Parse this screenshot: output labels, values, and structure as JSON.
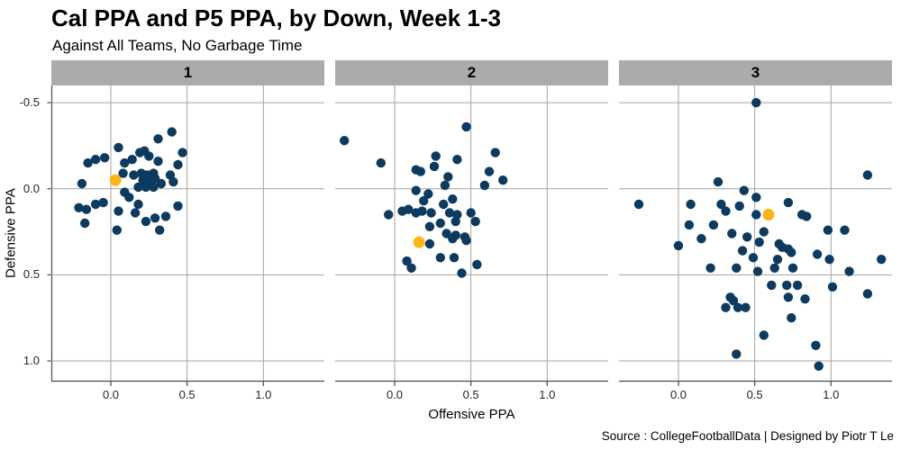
{
  "header": {
    "title": "Cal PPA and P5 PPA, by Down, Week 1-3",
    "subtitle": "Against All Teams, No Garbage Time"
  },
  "footer": {
    "source_note": "Source : CollegeFootballData | Designed by Piotr T Le"
  },
  "colors": {
    "p5_point": "#0d3a5f",
    "cal_point": "#fdb515",
    "strip_bg": "#ababab",
    "strip_text": "#000000",
    "gridline": "#a3a3a3",
    "axis_line": "#4a4a4a",
    "background": "#ffffff"
  },
  "chart_data": {
    "type": "scatter",
    "title": "Cal PPA and P5 PPA, by Down, Week 1-3",
    "subtitle": "Against All Teams, No Garbage Time",
    "xlabel": "Offensive PPA",
    "ylabel": "Defensive PPA",
    "facet_variable": "down",
    "grid": true,
    "legend": "none",
    "xlim": [
      -0.39,
      1.4
    ],
    "ylim": [
      -0.6,
      1.12
    ],
    "y_axis_reversed": true,
    "x_ticks": [
      {
        "label": "0.0",
        "value": 0.0
      },
      {
        "label": "0.5",
        "value": 0.5
      },
      {
        "label": "1.0",
        "value": 1.0
      }
    ],
    "y_ticks": [
      {
        "label": "-0.5",
        "value": -0.5
      },
      {
        "label": "0.0",
        "value": 0.0
      },
      {
        "label": "0.5",
        "value": 0.5
      },
      {
        "label": "1.0",
        "value": 1.0
      }
    ],
    "facets": [
      {
        "label": "1",
        "series": [
          {
            "name": "P5 PPA",
            "color_key": "p5_point",
            "radius": 5.2,
            "points": [
              [
                0.4,
                -0.33
              ],
              [
                0.31,
                -0.29
              ],
              [
                0.05,
                -0.24
              ],
              [
                0.22,
                -0.22
              ],
              [
                0.19,
                -0.21
              ],
              [
                0.47,
                -0.21
              ],
              [
                0.25,
                -0.19
              ],
              [
                -0.04,
                -0.18
              ],
              [
                0.14,
                -0.17
              ],
              [
                -0.1,
                -0.17
              ],
              [
                0.31,
                -0.16
              ],
              [
                -0.15,
                -0.15
              ],
              [
                0.09,
                -0.15
              ],
              [
                0.44,
                -0.14
              ],
              [
                0.08,
                -0.09
              ],
              [
                0.2,
                -0.09
              ],
              [
                0.28,
                -0.09
              ],
              [
                0.39,
                -0.08
              ],
              [
                0.15,
                -0.08
              ],
              [
                0.24,
                -0.08
              ],
              [
                0.29,
                -0.06
              ],
              [
                0.21,
                -0.05
              ],
              [
                0.26,
                -0.04
              ],
              [
                0.41,
                -0.04
              ],
              [
                -0.19,
                -0.03
              ],
              [
                0.33,
                -0.03
              ],
              [
                0.18,
                -0.01
              ],
              [
                0.23,
                -0.01
              ],
              [
                0.28,
                -0.01
              ],
              [
                0.09,
                0.02
              ],
              [
                0.12,
                0.05
              ],
              [
                -0.05,
                0.08
              ],
              [
                -0.1,
                0.09
              ],
              [
                0.18,
                0.09
              ],
              [
                0.44,
                0.1
              ],
              [
                -0.21,
                0.11
              ],
              [
                -0.16,
                0.12
              ],
              [
                0.05,
                0.13
              ],
              [
                0.16,
                0.14
              ],
              [
                0.36,
                0.16
              ],
              [
                0.29,
                0.17
              ],
              [
                0.23,
                0.19
              ],
              [
                -0.17,
                0.2
              ],
              [
                0.04,
                0.24
              ],
              [
                0.32,
                0.24
              ]
            ]
          },
          {
            "name": "Cal PPA",
            "color_key": "cal_point",
            "radius": 6.5,
            "points": [
              [
                0.03,
                -0.05
              ]
            ]
          }
        ]
      },
      {
        "label": "2",
        "series": [
          {
            "name": "P5 PPA",
            "color_key": "p5_point",
            "radius": 5.2,
            "points": [
              [
                0.47,
                -0.36
              ],
              [
                -0.33,
                -0.28
              ],
              [
                0.66,
                -0.21
              ],
              [
                0.27,
                -0.19
              ],
              [
                0.41,
                -0.17
              ],
              [
                -0.09,
                -0.15
              ],
              [
                0.26,
                -0.13
              ],
              [
                0.14,
                -0.11
              ],
              [
                0.17,
                -0.1
              ],
              [
                0.62,
                -0.1
              ],
              [
                0.35,
                -0.07
              ],
              [
                0.71,
                -0.05
              ],
              [
                0.33,
                -0.02
              ],
              [
                0.59,
                -0.02
              ],
              [
                0.14,
                0.01
              ],
              [
                0.22,
                0.03
              ],
              [
                0.38,
                0.06
              ],
              [
                0.19,
                0.07
              ],
              [
                0.32,
                0.09
              ],
              [
                0.09,
                0.12
              ],
              [
                0.05,
                0.13
              ],
              [
                0.18,
                0.13
              ],
              [
                0.14,
                0.14
              ],
              [
                0.24,
                0.14
              ],
              [
                0.36,
                0.14
              ],
              [
                0.41,
                0.15
              ],
              [
                0.5,
                0.14
              ],
              [
                -0.04,
                0.15
              ],
              [
                0.53,
                0.19
              ],
              [
                0.4,
                0.19
              ],
              [
                0.3,
                0.2
              ],
              [
                0.23,
                0.22
              ],
              [
                0.34,
                0.26
              ],
              [
                0.4,
                0.27
              ],
              [
                0.46,
                0.28
              ],
              [
                0.38,
                0.29
              ],
              [
                0.47,
                0.3
              ],
              [
                0.23,
                0.32
              ],
              [
                0.3,
                0.4
              ],
              [
                0.39,
                0.4
              ],
              [
                0.08,
                0.42
              ],
              [
                0.54,
                0.44
              ],
              [
                0.11,
                0.46
              ],
              [
                0.44,
                0.49
              ]
            ]
          },
          {
            "name": "Cal PPA",
            "color_key": "cal_point",
            "radius": 6.5,
            "points": [
              [
                0.16,
                0.31
              ]
            ]
          }
        ]
      },
      {
        "label": "3",
        "series": [
          {
            "name": "P5 PPA",
            "color_key": "p5_point",
            "radius": 5.2,
            "points": [
              [
                0.51,
                -0.5
              ],
              [
                1.24,
                -0.08
              ],
              [
                0.26,
                -0.04
              ],
              [
                0.43,
                0.01
              ],
              [
                0.51,
                0.05
              ],
              [
                -0.26,
                0.09
              ],
              [
                0.08,
                0.09
              ],
              [
                0.28,
                0.09
              ],
              [
                0.4,
                0.1
              ],
              [
                0.31,
                0.13
              ],
              [
                0.51,
                0.15
              ],
              [
                0.72,
                0.08
              ],
              [
                0.81,
                0.15
              ],
              [
                0.84,
                0.16
              ],
              [
                0.07,
                0.21
              ],
              [
                0.23,
                0.21
              ],
              [
                0.98,
                0.24
              ],
              [
                1.09,
                0.24
              ],
              [
                0.56,
                0.25
              ],
              [
                0.35,
                0.26
              ],
              [
                0.45,
                0.28
              ],
              [
                0.15,
                0.29
              ],
              [
                0.53,
                0.31
              ],
              [
                0.66,
                0.32
              ],
              [
                0.0,
                0.33
              ],
              [
                0.68,
                0.34
              ],
              [
                0.72,
                0.35
              ],
              [
                0.42,
                0.36
              ],
              [
                0.74,
                0.37
              ],
              [
                0.91,
                0.38
              ],
              [
                0.49,
                0.4
              ],
              [
                0.65,
                0.41
              ],
              [
                0.99,
                0.41
              ],
              [
                1.33,
                0.41
              ],
              [
                0.21,
                0.46
              ],
              [
                0.38,
                0.46
              ],
              [
                0.63,
                0.46
              ],
              [
                0.75,
                0.46
              ],
              [
                0.52,
                0.48
              ],
              [
                1.12,
                0.48
              ],
              [
                0.61,
                0.56
              ],
              [
                0.71,
                0.56
              ],
              [
                0.78,
                0.56
              ],
              [
                1.01,
                0.57
              ],
              [
                1.24,
                0.61
              ],
              [
                0.34,
                0.63
              ],
              [
                0.72,
                0.63
              ],
              [
                0.36,
                0.65
              ],
              [
                0.83,
                0.64
              ],
              [
                0.31,
                0.69
              ],
              [
                0.39,
                0.69
              ],
              [
                0.44,
                0.69
              ],
              [
                0.74,
                0.75
              ],
              [
                0.56,
                0.85
              ],
              [
                0.9,
                0.91
              ],
              [
                0.38,
                0.96
              ],
              [
                0.92,
                1.03
              ]
            ]
          },
          {
            "name": "Cal PPA",
            "color_key": "cal_point",
            "radius": 6.5,
            "points": [
              [
                0.59,
                0.15
              ]
            ]
          }
        ]
      }
    ]
  }
}
